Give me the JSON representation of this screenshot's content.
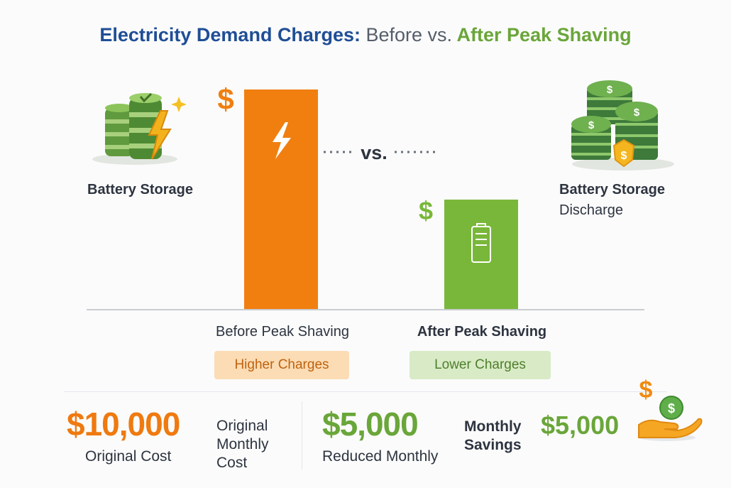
{
  "title": {
    "part1": "Electricity Demand Charges:",
    "part2": "Before vs.",
    "part3": "After Peak Shaving"
  },
  "left_panel": {
    "label": "Battery Storage",
    "icon": "battery-lightning-icon"
  },
  "right_panel": {
    "label_line1": "Battery Storage",
    "label_line2": "Discharge",
    "icon": "coin-stacks-icon"
  },
  "vs_label": "vs.",
  "colors": {
    "before": "#f07f10",
    "after": "#79b73a",
    "title_blue": "#1f4e96",
    "title_green": "#6aa63a"
  },
  "chart_data": {
    "type": "bar",
    "categories": [
      "Before Peak Shaving",
      "After Peak Shaving"
    ],
    "values": [
      10000,
      5000
    ],
    "bar_symbols": [
      "$",
      "$"
    ],
    "bar_icons": [
      "lightning-icon",
      "battery-icon"
    ],
    "badges": [
      "Higher Charges",
      "Lower Charges"
    ],
    "ylim": [
      0,
      10000
    ]
  },
  "summary": {
    "original_value": "$10,000",
    "original_label": "Original Cost",
    "original_desc": [
      "Original",
      "Monthly",
      "Cost"
    ],
    "reduced_value": "$5,000",
    "reduced_label": "Reduced Monthly",
    "savings_label": [
      "Monthly",
      "Savings"
    ],
    "savings_value": "$5,000",
    "savings_icon": "hand-coin-icon"
  }
}
